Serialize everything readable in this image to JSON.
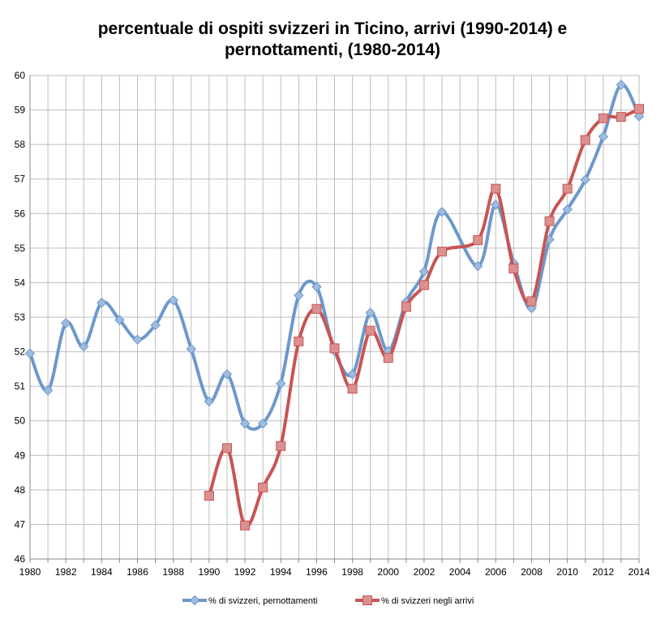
{
  "chart_data": {
    "type": "line",
    "title_line1": "percentuale di ospiti svizzeri in Ticino, arrivi (1990-2014) e",
    "title_line2": "pernottamenti, (1980-2014)",
    "xlabel": "",
    "ylabel": "",
    "xlim": [
      1980,
      2014
    ],
    "ylim": [
      46,
      60
    ],
    "x_ticks": [
      "1980",
      "1982",
      "1984",
      "1986",
      "1988",
      "1990",
      "1992",
      "1994",
      "1996",
      "1998",
      "2000",
      "2002",
      "2004",
      "2006",
      "2008",
      "2010",
      "2012",
      "2014"
    ],
    "y_ticks": [
      "46",
      "47",
      "48",
      "49",
      "50",
      "51",
      "52",
      "53",
      "54",
      "55",
      "56",
      "57",
      "58",
      "59",
      "60"
    ],
    "grid": true,
    "legend_position": "bottom",
    "series": [
      {
        "name": "% di svizzeri, pernottamenti",
        "color": "#6c98cc",
        "marker": "diamond",
        "x": [
          1980,
          1981,
          1982,
          1983,
          1984,
          1985,
          1986,
          1987,
          1988,
          1989,
          1990,
          1991,
          1992,
          1993,
          1994,
          1995,
          1996,
          1997,
          1998,
          1999,
          2000,
          2001,
          2002,
          2003,
          2004,
          2005,
          2006,
          2007,
          2008,
          2009,
          2010,
          2011,
          2012,
          2013,
          2014
        ],
        "values": [
          51.95,
          50.88,
          52.83,
          52.15,
          53.42,
          52.92,
          52.35,
          52.77,
          53.49,
          52.08,
          50.56,
          51.35,
          49.92,
          49.92,
          51.08,
          53.63,
          53.88,
          52.02,
          51.35,
          53.13,
          52.02,
          53.45,
          54.32,
          56.05,
          null,
          54.48,
          56.26,
          54.57,
          53.26,
          55.25,
          56.12,
          56.98,
          58.23,
          59.73,
          58.82
        ]
      },
      {
        "name": "% di svizzeri negli arrivi",
        "color": "#c85454",
        "marker": "square",
        "x": [
          1990,
          1991,
          1992,
          1993,
          1994,
          1995,
          1996,
          1997,
          1998,
          1999,
          2000,
          2001,
          2002,
          2003,
          2004,
          2005,
          2006,
          2007,
          2008,
          2009,
          2010,
          2011,
          2012,
          2013,
          2014
        ],
        "values": [
          47.83,
          49.21,
          46.97,
          48.07,
          49.27,
          52.3,
          53.24,
          52.1,
          50.93,
          52.61,
          51.82,
          53.3,
          53.93,
          54.9,
          null,
          55.23,
          56.72,
          54.41,
          53.46,
          55.78,
          56.72,
          58.13,
          58.76,
          58.8,
          59.03
        ]
      }
    ]
  }
}
